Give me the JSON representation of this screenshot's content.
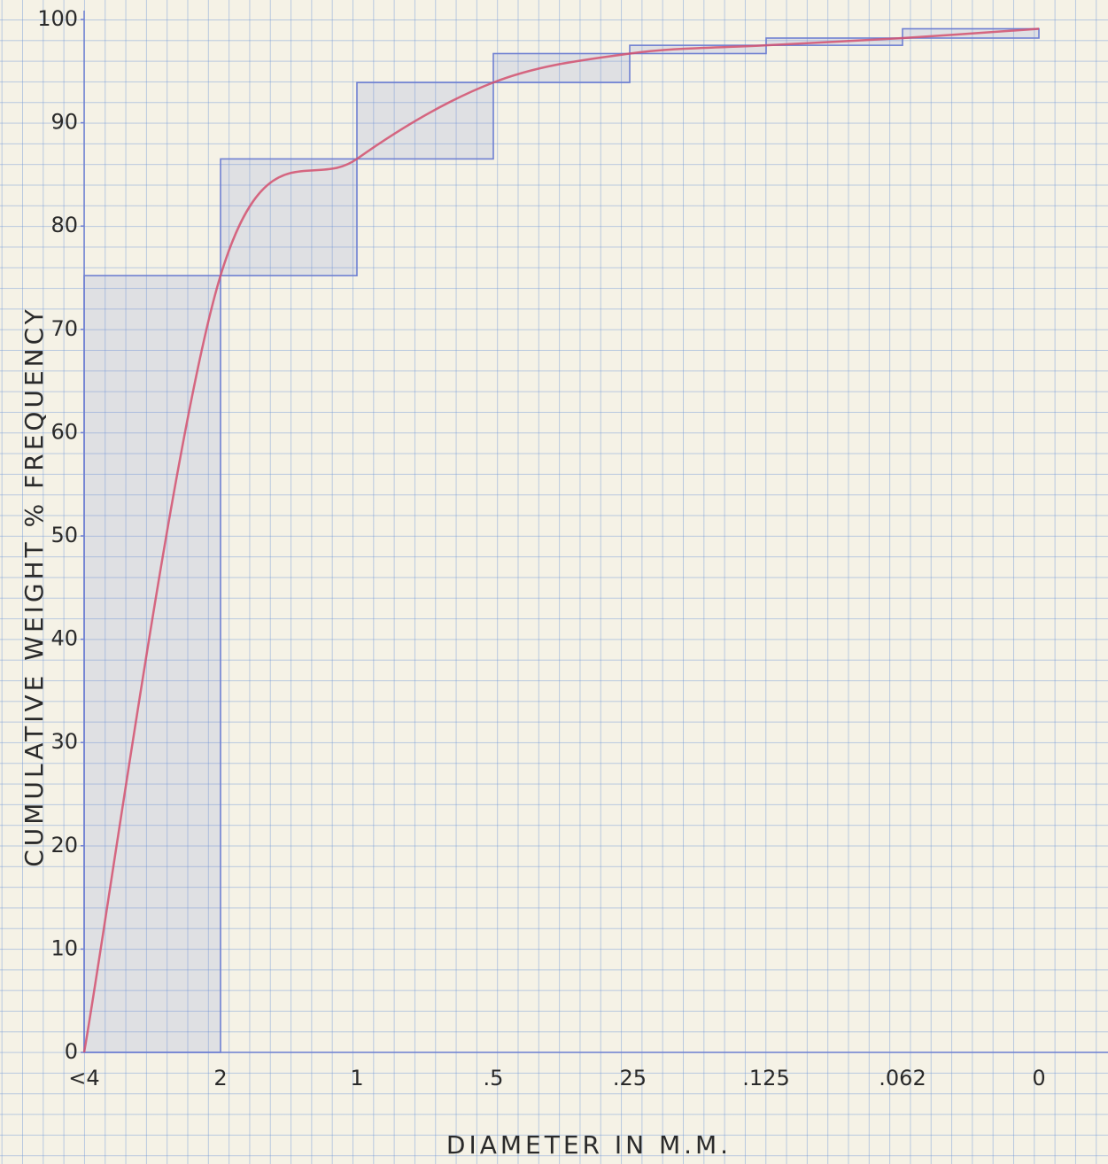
{
  "chart_data": {
    "type": "waterfall",
    "x_label": "DIAMETER IN M.M.",
    "y_label": "CUMULATIVE WEIGHT % FREQUENCY",
    "bin_edges": [
      "<4",
      "2",
      "1",
      ".5",
      ".25",
      ".125",
      ".062",
      "0"
    ],
    "values": [
      75.2,
      11.3,
      7.4,
      2.8,
      0.8,
      0.7,
      0.9
    ],
    "color": "#6f80d2",
    "line_values": [
      0,
      75.2,
      86.5,
      93.9,
      96.7,
      97.5,
      98.2,
      99.1
    ],
    "line_color": "#d4506e",
    "ylim": [
      0,
      100
    ],
    "yticks": [
      0,
      10,
      20,
      30,
      40,
      50,
      60,
      70,
      80,
      90,
      100
    ],
    "grid": true
  }
}
